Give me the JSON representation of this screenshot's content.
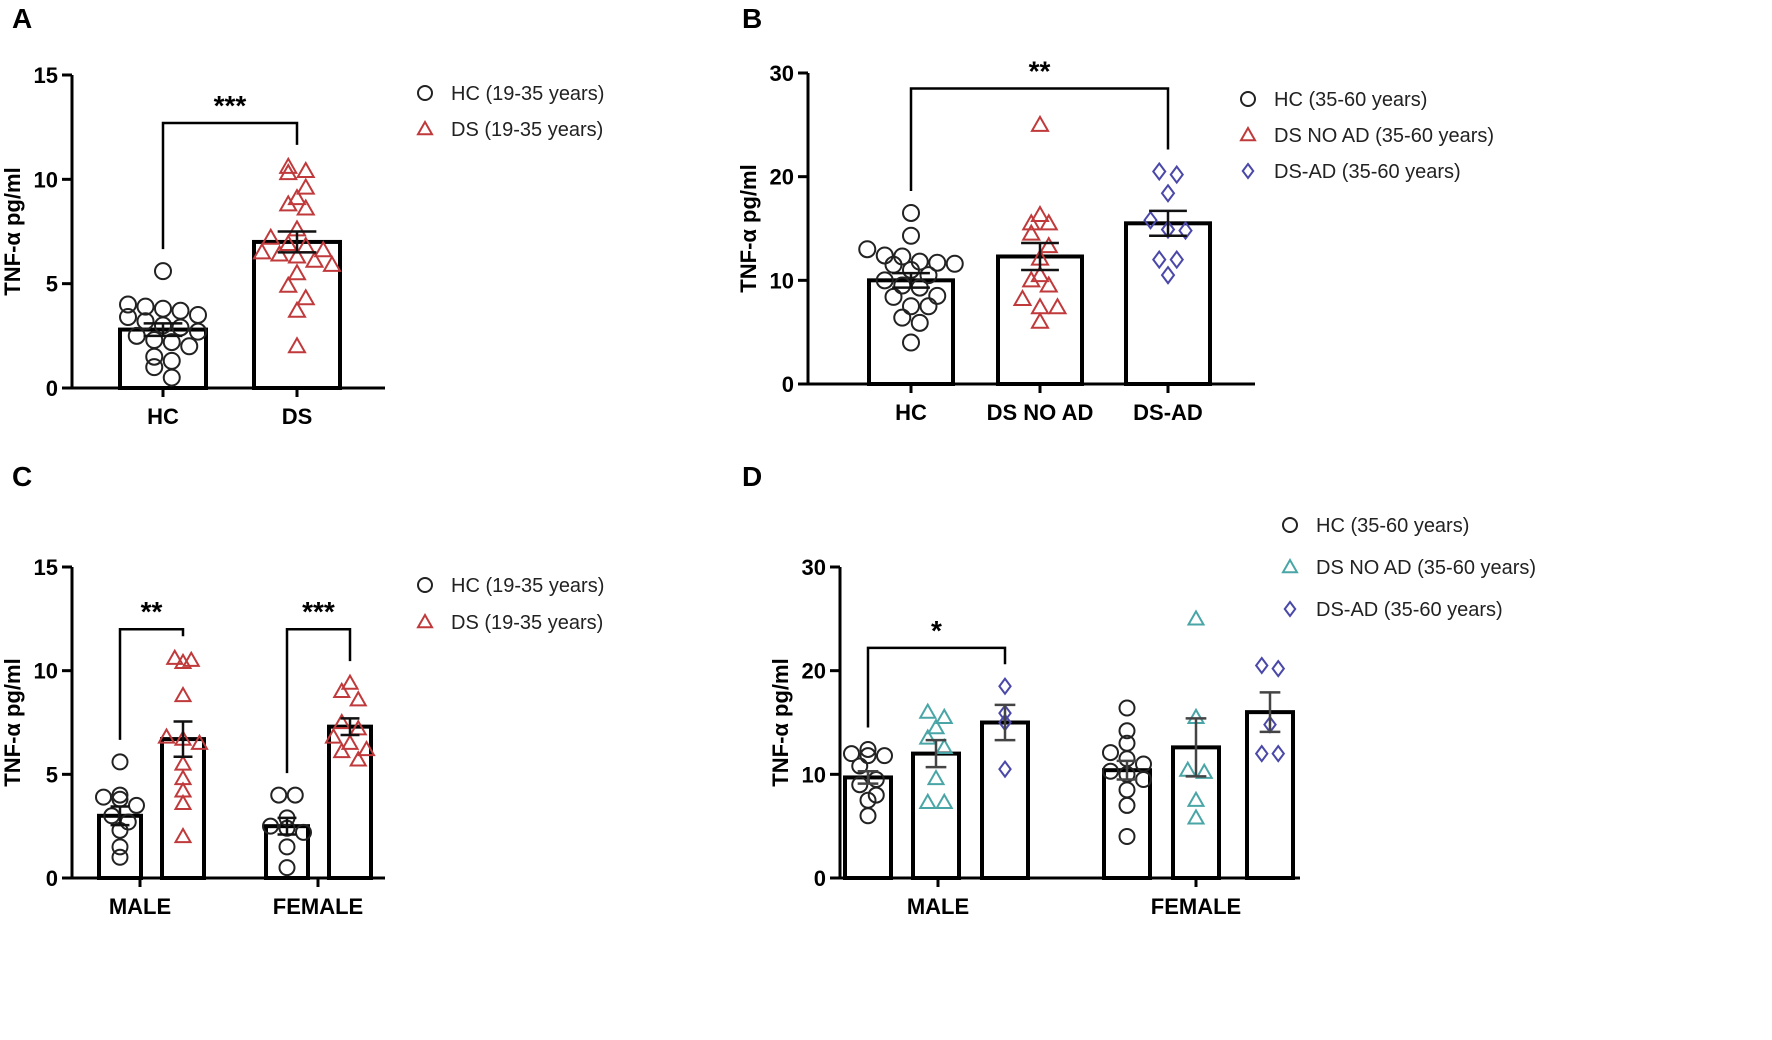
{
  "colors": {
    "hc": "#222222",
    "ds": "#c0393b",
    "dsad": "#4a48a8",
    "dsnoad_d": "#4aa6a6"
  },
  "chart_data": [
    {
      "panel": "A",
      "type": "bar",
      "ylabel": "TNF-α pg/ml",
      "ylim": [
        0,
        15
      ],
      "yticks": [
        0,
        5,
        10,
        15
      ],
      "categories": [
        "HC",
        "DS"
      ],
      "legend": [
        {
          "label": "HC (19-35 years)",
          "marker": "circle",
          "color": "#222222"
        },
        {
          "label": "DS (19-35 years)",
          "marker": "triangle",
          "color": "#c0393b"
        }
      ],
      "bars": [
        {
          "category": "HC",
          "series": "HC (19-35 years)",
          "mean": 2.8,
          "sem": 0.3,
          "marker": "circle",
          "color": "#222222",
          "points": [
            5.6,
            4.0,
            3.9,
            3.8,
            3.7,
            3.5,
            3.4,
            3.2,
            3.0,
            2.9,
            2.7,
            2.5,
            2.3,
            2.2,
            2.0,
            1.5,
            1.3,
            1.0,
            0.5
          ]
        },
        {
          "category": "DS",
          "series": "DS (19-35 years)",
          "mean": 7.0,
          "sem": 0.5,
          "marker": "triangle",
          "color": "#c0393b",
          "points": [
            10.6,
            10.4,
            10.3,
            9.6,
            9.1,
            8.8,
            8.6,
            7.6,
            7.2,
            6.9,
            6.8,
            6.6,
            6.5,
            6.4,
            6.3,
            6.1,
            5.9,
            5.5,
            4.9,
            4.3,
            3.7,
            2.0
          ]
        }
      ],
      "significance": [
        {
          "from": 0,
          "to": 1,
          "label": "***",
          "y": 12.7
        }
      ]
    },
    {
      "panel": "B",
      "type": "bar",
      "ylabel": "TNF-α pg/ml",
      "ylim": [
        0,
        30
      ],
      "yticks": [
        0,
        10,
        20,
        30
      ],
      "categories": [
        "HC",
        "DS NO AD",
        "DS-AD"
      ],
      "legend": [
        {
          "label": "HC (35-60 years)",
          "marker": "circle",
          "color": "#222222"
        },
        {
          "label": "DS NO AD (35-60 years)",
          "marker": "triangle",
          "color": "#c0393b"
        },
        {
          "label": "DS-AD (35-60 years)",
          "marker": "diamond",
          "color": "#4a48a8"
        }
      ],
      "bars": [
        {
          "category": "HC",
          "mean": 10.0,
          "sem": 0.7,
          "marker": "circle",
          "color": "#222222",
          "points": [
            16.5,
            14.3,
            13.0,
            12.4,
            12.3,
            11.8,
            11.7,
            11.6,
            11.5,
            11.0,
            10.5,
            10.0,
            9.5,
            9.3,
            8.5,
            8.4,
            7.5,
            7.5,
            6.4,
            5.9,
            4.0
          ]
        },
        {
          "category": "DS NO AD",
          "mean": 12.3,
          "sem": 1.3,
          "marker": "triangle",
          "color": "#c0393b",
          "points": [
            25.0,
            16.3,
            15.5,
            15.5,
            14.5,
            13.3,
            12.1,
            10.5,
            10.0,
            9.5,
            8.2,
            7.4,
            7.4,
            6.0
          ]
        },
        {
          "category": "DS-AD",
          "mean": 15.5,
          "sem": 1.2,
          "marker": "diamond",
          "color": "#4a48a8",
          "points": [
            20.5,
            20.2,
            18.4,
            15.8,
            14.9,
            14.8,
            12.0,
            12.0,
            10.5
          ]
        }
      ],
      "significance": [
        {
          "from": 0,
          "to": 2,
          "label": "**",
          "y": 28.5
        }
      ]
    },
    {
      "panel": "C",
      "type": "bar",
      "ylabel": "TNF-α pg/ml",
      "ylim": [
        0,
        15
      ],
      "yticks": [
        0,
        5,
        10,
        15
      ],
      "categories": [
        "MALE",
        "FEMALE"
      ],
      "legend": [
        {
          "label": "HC (19-35 years)",
          "marker": "circle",
          "color": "#222222"
        },
        {
          "label": "DS (19-35 years)",
          "marker": "triangle",
          "color": "#c0393b"
        }
      ],
      "bars": [
        {
          "category": "MALE",
          "series": "HC",
          "mean": 3.0,
          "sem": 0.45,
          "marker": "circle",
          "color": "#222222",
          "points": [
            5.6,
            4.0,
            3.9,
            3.8,
            3.5,
            3.0,
            2.7,
            2.3,
            1.5,
            1.0
          ]
        },
        {
          "category": "MALE",
          "series": "DS",
          "mean": 6.7,
          "sem": 0.85,
          "marker": "triangle",
          "color": "#c0393b",
          "points": [
            10.6,
            10.5,
            10.4,
            8.8,
            6.8,
            6.7,
            6.5,
            5.5,
            4.8,
            4.2,
            3.6,
            2.0
          ]
        },
        {
          "category": "FEMALE",
          "series": "HC",
          "mean": 2.5,
          "sem": 0.4,
          "marker": "circle",
          "color": "#222222",
          "points": [
            4.0,
            4.0,
            2.9,
            2.5,
            2.4,
            2.2,
            1.5,
            0.5
          ]
        },
        {
          "category": "FEMALE",
          "series": "DS",
          "mean": 7.3,
          "sem": 0.4,
          "marker": "triangle",
          "color": "#c0393b",
          "points": [
            9.4,
            9.0,
            8.6,
            7.5,
            7.2,
            6.8,
            6.5,
            6.2,
            6.1,
            5.7
          ]
        }
      ],
      "significance": [
        {
          "from": 0,
          "to": 1,
          "label": "**",
          "y": 12.0
        },
        {
          "from": 2,
          "to": 3,
          "label": "***",
          "y": 12.0
        }
      ]
    },
    {
      "panel": "D",
      "type": "bar",
      "ylabel": "TNF-α pg/ml",
      "ylim": [
        0,
        30
      ],
      "yticks": [
        0,
        10,
        20,
        30
      ],
      "categories": [
        "MALE",
        "FEMALE"
      ],
      "legend": [
        {
          "label": "HC (35-60 years)",
          "marker": "circle",
          "color": "#222222"
        },
        {
          "label": "DS NO AD (35-60 years)",
          "marker": "triangle",
          "color": "#4aa6a6"
        },
        {
          "label": "DS-AD (35-60 years)",
          "marker": "diamond",
          "color": "#4a48a8"
        }
      ],
      "bars": [
        {
          "category": "MALE",
          "series": "HC",
          "mean": 9.7,
          "sem": 0.6,
          "marker": "circle",
          "color": "#222222",
          "points": [
            12.4,
            12.0,
            11.8,
            11.8,
            10.8,
            9.5,
            9.0,
            8.0,
            7.5,
            6.0
          ]
        },
        {
          "category": "MALE",
          "series": "DS NO AD",
          "mean": 12.0,
          "sem": 1.3,
          "marker": "triangle",
          "color": "#4aa6a6",
          "points": [
            16.0,
            15.5,
            14.5,
            13.5,
            12.6,
            9.6,
            7.3,
            7.3
          ]
        },
        {
          "category": "MALE",
          "series": "DS-AD",
          "mean": 15.0,
          "sem": 1.7,
          "marker": "diamond",
          "color": "#4a48a8",
          "points": [
            18.5,
            15.9,
            15.0,
            10.5
          ]
        },
        {
          "category": "FEMALE",
          "series": "HC",
          "mean": 10.4,
          "sem": 0.9,
          "marker": "circle",
          "color": "#222222",
          "points": [
            16.4,
            14.2,
            13.0,
            12.1,
            11.5,
            11.0,
            10.3,
            10.0,
            9.5,
            8.5,
            7.0,
            4.0
          ]
        },
        {
          "category": "FEMALE",
          "series": "DS NO AD",
          "mean": 12.6,
          "sem": 2.8,
          "marker": "triangle",
          "color": "#4aa6a6",
          "points": [
            25.0,
            15.5,
            10.4,
            10.2,
            7.5,
            5.8
          ]
        },
        {
          "category": "FEMALE",
          "series": "DS-AD",
          "mean": 16.0,
          "sem": 1.9,
          "marker": "diamond",
          "color": "#4a48a8",
          "points": [
            20.5,
            20.2,
            14.8,
            12.0,
            12.0
          ]
        }
      ],
      "significance": [
        {
          "from": 0,
          "to": 2,
          "label": "*",
          "y": 22.2
        }
      ]
    }
  ]
}
